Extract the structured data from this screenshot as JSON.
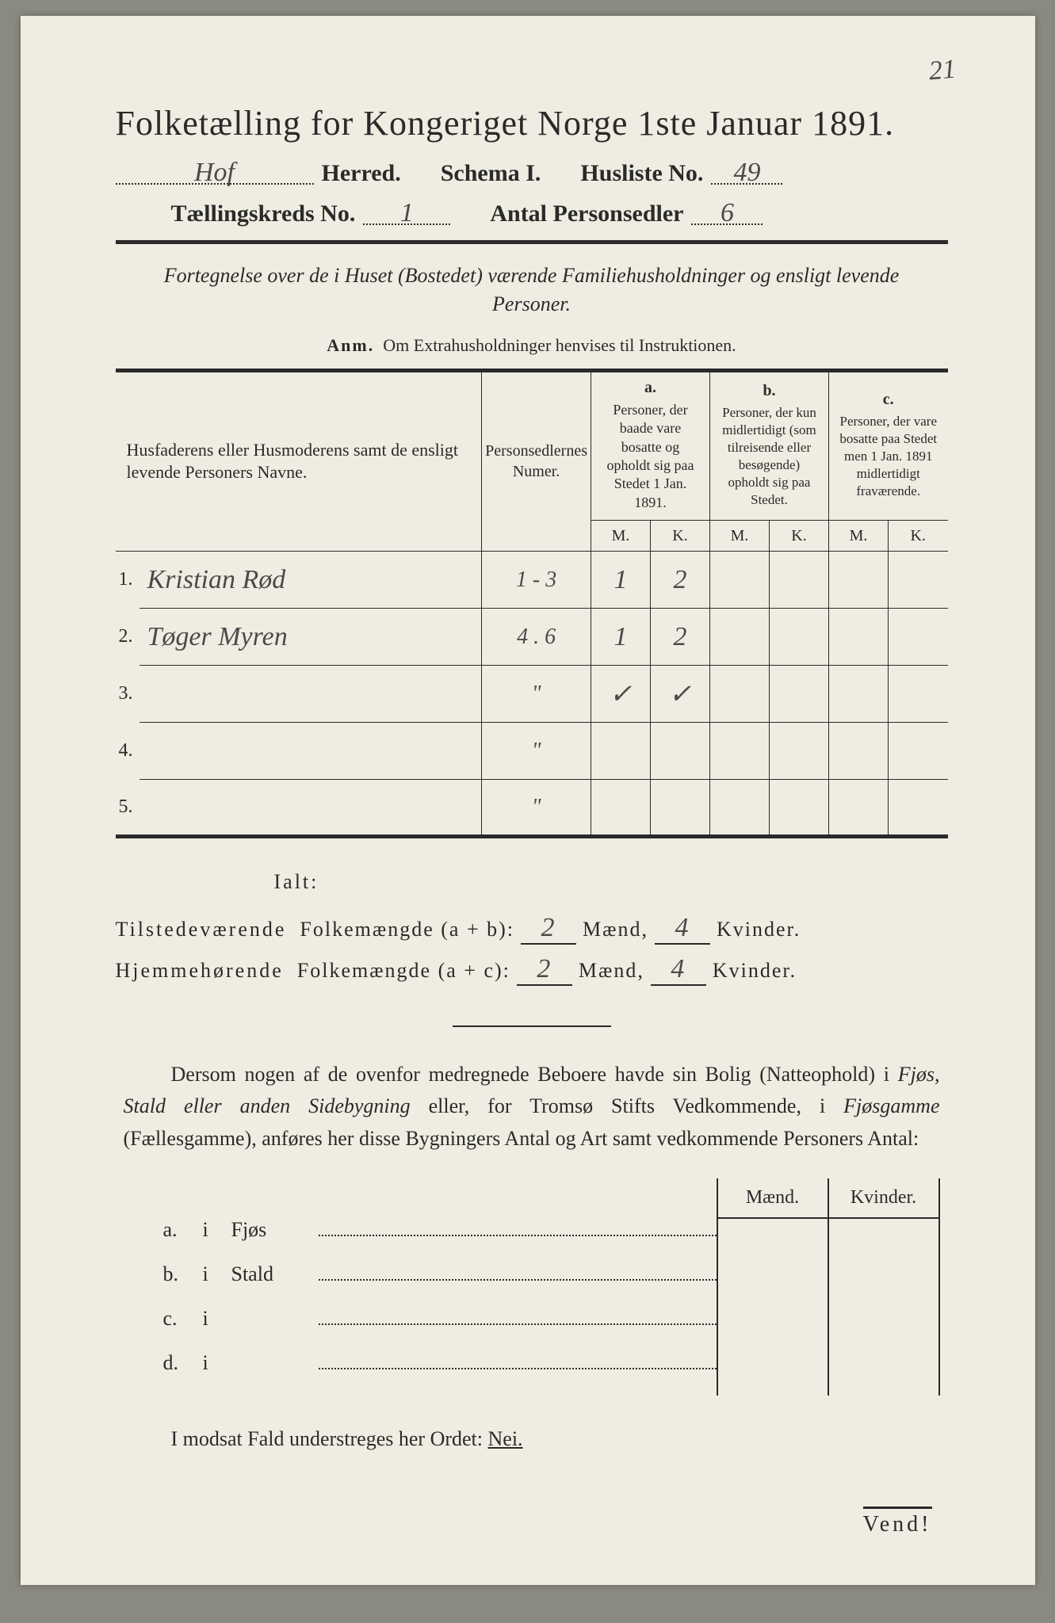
{
  "corner_number": "21",
  "title": "Folketælling for Kongeriget Norge 1ste Januar 1891.",
  "line2": {
    "herred_value": "Hof",
    "herred_label": "Herred.",
    "schema_label": "Schema I.",
    "husliste_label": "Husliste No.",
    "husliste_value": "49"
  },
  "line3": {
    "kreds_label": "Tællingskreds No.",
    "kreds_value": "1",
    "antal_label": "Antal Personsedler",
    "antal_value": "6"
  },
  "subtitle": "Fortegnelse over de i Huset (Bostedet) værende Familiehusholdninger og ensligt levende Personer.",
  "anm_label": "Anm.",
  "anm_text": "Om Extrahusholdninger henvises til Instruktionen.",
  "table": {
    "col_names_header": "Husfaderens eller Husmoderens samt de ensligt levende Personers Navne.",
    "col_numer_header": "Personsedlernes Numer.",
    "group_a": {
      "label": "a.",
      "text": "Personer, der baade vare bosatte og opholdt sig paa Stedet 1 Jan. 1891."
    },
    "group_b": {
      "label": "b.",
      "text": "Personer, der kun midlertidigt (som tilreisende eller besøgende) opholdt sig paa Stedet."
    },
    "group_c": {
      "label": "c.",
      "text": "Personer, der vare bosatte paa Stedet men 1 Jan. 1891 midlertidigt fraværende."
    },
    "sub_m": "M.",
    "sub_k": "K.",
    "rows": [
      {
        "n": "1.",
        "name": "Kristian Rød",
        "numer": "1 - 3",
        "a_m": "1",
        "a_k": "2",
        "b_m": "",
        "b_k": "",
        "c_m": "",
        "c_k": ""
      },
      {
        "n": "2.",
        "name": "Tøger Myren",
        "numer": "4 . 6",
        "a_m": "1",
        "a_k": "2",
        "b_m": "",
        "b_k": "",
        "c_m": "",
        "c_k": ""
      },
      {
        "n": "3.",
        "name": "",
        "numer": "\"",
        "a_m": "✓",
        "a_k": "✓",
        "b_m": "",
        "b_k": "",
        "c_m": "",
        "c_k": ""
      },
      {
        "n": "4.",
        "name": "",
        "numer": "\"",
        "a_m": "",
        "a_k": "",
        "b_m": "",
        "b_k": "",
        "c_m": "",
        "c_k": ""
      },
      {
        "n": "5.",
        "name": "",
        "numer": "\"",
        "a_m": "",
        "a_k": "",
        "b_m": "",
        "b_k": "",
        "c_m": "",
        "c_k": ""
      }
    ]
  },
  "ialt": "Ialt:",
  "totals": {
    "tilstede_label": "Tilstedeværende",
    "folkem_label": "Folkemængde",
    "ab": "(a + b):",
    "ac": "(a + c):",
    "hjemme_label": "Hjemmehørende",
    "maend": "Mænd,",
    "kvinder": "Kvinder.",
    "tilstede_m": "2",
    "tilstede_k": "4",
    "hjemme_m": "2",
    "hjemme_k": "4"
  },
  "para": "Dersom nogen af de ovenfor medregnede Beboere havde sin Bolig (Natteophold) i Fjøs, Stald eller anden Sidebygning eller, for Tromsø Stifts Vedkommende, i Fjøsgamme (Fællesgamme), anføres her disse Bygningers Antal og Art samt vedkommende Personers Antal:",
  "dwell": {
    "header_m": "Mænd.",
    "header_k": "Kvinder.",
    "rows": [
      {
        "lab": "a.",
        "i": "i",
        "name": "Fjøs"
      },
      {
        "lab": "b.",
        "i": "i",
        "name": "Stald"
      },
      {
        "lab": "c.",
        "i": "i",
        "name": ""
      },
      {
        "lab": "d.",
        "i": "i",
        "name": ""
      }
    ]
  },
  "nei_text": "I modsat Fald understreges her Ordet:",
  "nei_word": "Nei.",
  "vend": "Vend!"
}
